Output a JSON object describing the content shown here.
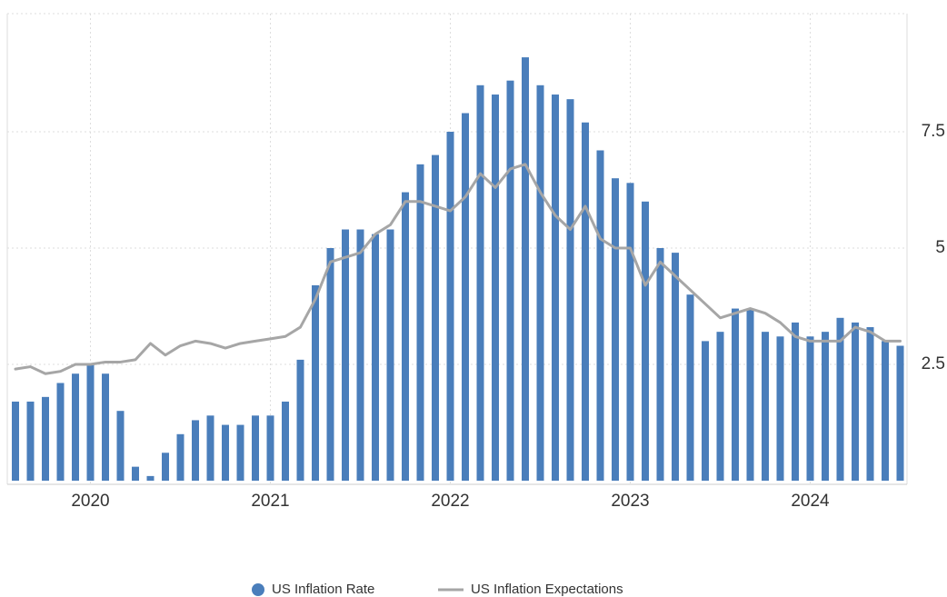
{
  "chart_data": {
    "type": "bar",
    "categories": [
      null,
      null,
      null,
      null,
      null,
      "2020",
      null,
      null,
      null,
      null,
      null,
      null,
      null,
      null,
      null,
      null,
      null,
      "2021",
      null,
      null,
      null,
      null,
      null,
      null,
      null,
      null,
      null,
      null,
      null,
      "2022",
      null,
      null,
      null,
      null,
      null,
      null,
      null,
      null,
      null,
      null,
      null,
      "2023",
      null,
      null,
      null,
      null,
      null,
      null,
      null,
      null,
      null,
      null,
      null,
      "2024",
      null,
      null,
      null,
      null,
      null,
      null
    ],
    "series": [
      {
        "name": "US Inflation Rate",
        "type": "bar",
        "color": "#4a7ebb",
        "values": [
          1.7,
          1.7,
          1.8,
          2.1,
          2.3,
          2.5,
          2.3,
          1.5,
          0.3,
          0.1,
          0.6,
          1.0,
          1.3,
          1.4,
          1.2,
          1.2,
          1.4,
          1.4,
          1.7,
          2.6,
          4.2,
          5.0,
          5.4,
          5.4,
          5.3,
          5.4,
          6.2,
          6.8,
          7.0,
          7.5,
          7.9,
          8.5,
          8.3,
          8.6,
          9.1,
          8.5,
          8.3,
          8.2,
          7.7,
          7.1,
          6.5,
          6.4,
          6.0,
          5.0,
          4.9,
          4.0,
          3.0,
          3.2,
          3.7,
          3.7,
          3.2,
          3.1,
          3.4,
          3.1,
          3.2,
          3.5,
          3.4,
          3.3,
          3.0,
          2.9
        ]
      },
      {
        "name": "US Inflation Expectations",
        "type": "line",
        "color": "#a6a6a6",
        "values": [
          2.4,
          2.45,
          2.3,
          2.35,
          2.5,
          2.5,
          2.55,
          2.55,
          2.6,
          2.95,
          2.7,
          2.9,
          3.0,
          2.95,
          2.85,
          2.95,
          3.0,
          3.05,
          3.1,
          3.3,
          3.9,
          4.7,
          4.8,
          4.9,
          5.3,
          5.5,
          6.0,
          6.0,
          5.9,
          5.8,
          6.1,
          6.6,
          6.3,
          6.7,
          6.8,
          6.2,
          5.7,
          5.4,
          5.9,
          5.2,
          5.0,
          5.0,
          4.2,
          4.7,
          4.4,
          4.1,
          3.8,
          3.5,
          3.6,
          3.7,
          3.6,
          3.4,
          3.1,
          3.0,
          3.0,
          3.0,
          3.3,
          3.2,
          3.0,
          3.0
        ]
      }
    ],
    "ylim": [
      0,
      10
    ],
    "yticks": [
      2.5,
      5,
      7.5
    ],
    "grid": true,
    "legend": "bottom"
  }
}
